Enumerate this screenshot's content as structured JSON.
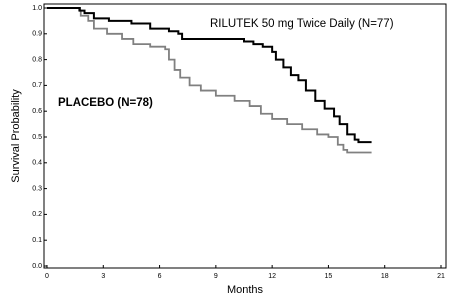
{
  "chart_data": {
    "type": "step",
    "x_label": "Months",
    "y_label": "Survival Probability",
    "xlim": [
      0,
      21
    ],
    "ylim": [
      0,
      1
    ],
    "xticks": [
      0,
      3,
      6,
      9,
      12,
      15,
      18,
      21
    ],
    "yticks": [
      {
        "value": 1.0,
        "label": "1.0"
      },
      0.9,
      0.8,
      0.7,
      0.6,
      0.5,
      0.4,
      0.3,
      0.2,
      0.1,
      {
        "value": 0.0,
        "label": "0.0"
      }
    ],
    "series": [
      {
        "name": "RILUTEK 50 mg Twice Daily (N=77)",
        "color": "#000000",
        "x": [
          0,
          1.75,
          2.0,
          2.5,
          3.3,
          4.5,
          5.5,
          6.5,
          7.0,
          7.2,
          10.5,
          11.0,
          11.5,
          12.0,
          12.2,
          12.6,
          13.0,
          13.4,
          13.8,
          14.3,
          14.8,
          15.3,
          15.6,
          16.0,
          16.4,
          16.6,
          17.3
        ],
        "values": [
          1.0,
          0.99,
          0.98,
          0.96,
          0.95,
          0.94,
          0.92,
          0.91,
          0.9,
          0.88,
          0.87,
          0.86,
          0.85,
          0.83,
          0.8,
          0.77,
          0.74,
          0.72,
          0.68,
          0.64,
          0.61,
          0.58,
          0.55,
          0.51,
          0.49,
          0.48,
          0.48
        ]
      },
      {
        "name": "PLACEBO (N=78)",
        "color": "#808080",
        "x": [
          0,
          1.7,
          1.8,
          2.2,
          2.5,
          3.2,
          4.0,
          4.6,
          5.5,
          6.3,
          6.5,
          6.8,
          7.1,
          7.6,
          8.2,
          9.0,
          10.0,
          10.8,
          11.4,
          12.0,
          12.8,
          13.6,
          14.4,
          15.0,
          15.5,
          15.8,
          16.0,
          17.3
        ],
        "values": [
          1.0,
          0.99,
          0.97,
          0.95,
          0.92,
          0.9,
          0.88,
          0.86,
          0.85,
          0.84,
          0.8,
          0.76,
          0.73,
          0.7,
          0.68,
          0.66,
          0.64,
          0.62,
          0.59,
          0.57,
          0.55,
          0.53,
          0.51,
          0.5,
          0.47,
          0.45,
          0.44,
          0.44
        ]
      }
    ]
  }
}
